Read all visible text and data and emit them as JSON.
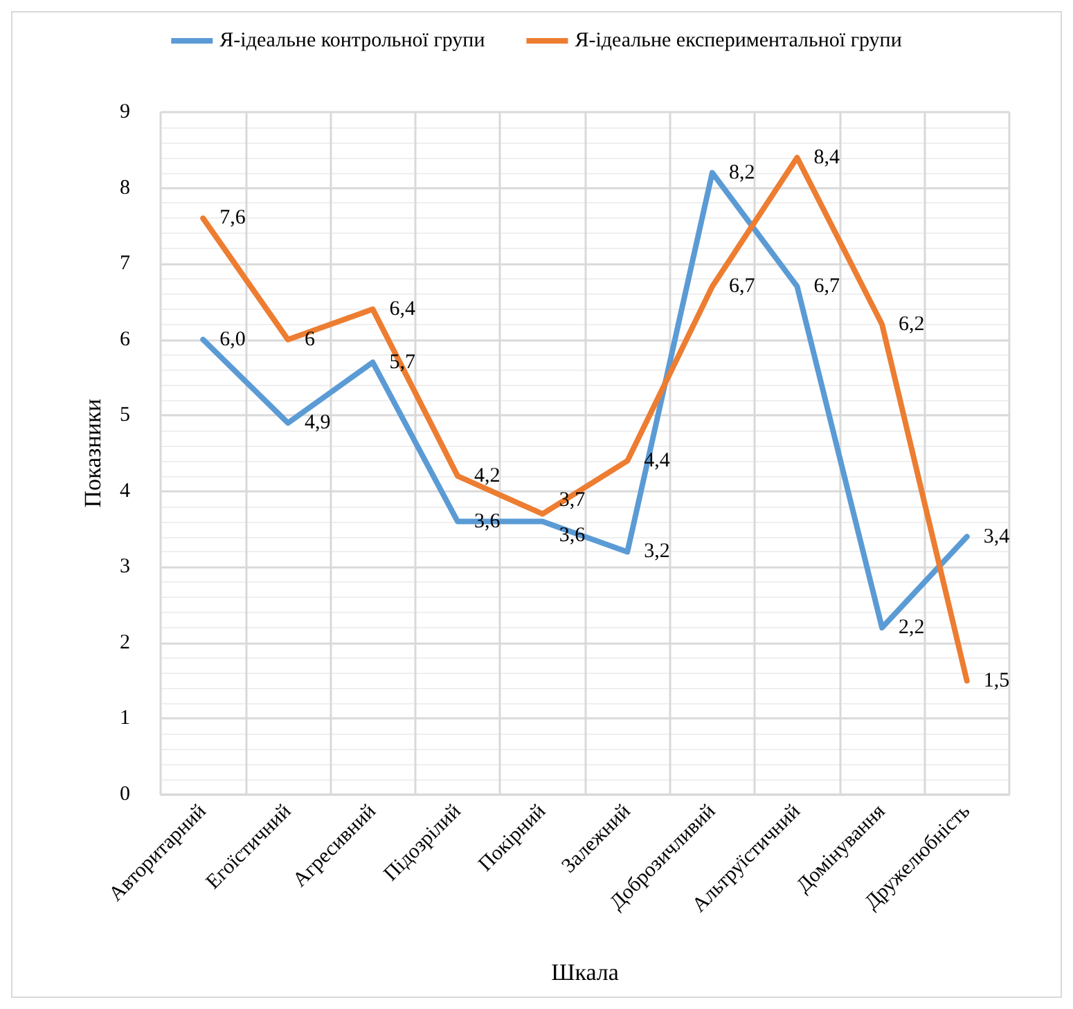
{
  "chart_data": {
    "type": "line",
    "xlabel": "Шкала",
    "ylabel": "Показники",
    "categories": [
      "Авторитарний",
      "Егоїстичний",
      "Агресивний",
      "Підозрілий",
      "Покірний",
      "Залежний",
      "Доброзичливий",
      "Альтруїстичний",
      "Домінування",
      "Дружелюбність"
    ],
    "series": [
      {
        "name": "Я-ідеальне контрольної групи",
        "color": "#5b9bd5",
        "values": [
          6.0,
          4.9,
          5.7,
          3.6,
          3.6,
          3.2,
          8.2,
          6.7,
          2.2,
          3.4
        ],
        "value_labels": [
          "6,0",
          "4,9",
          "5,7",
          "3,6",
          "3,6",
          "3,2",
          "8,2",
          "6,7",
          "2,2",
          "3,4"
        ]
      },
      {
        "name": "Я-ідеальне експериментальної групи",
        "color": "#ed7d31",
        "values": [
          7.6,
          6,
          6.4,
          4.2,
          3.7,
          4.4,
          6.7,
          8.4,
          6.2,
          1.5
        ],
        "value_labels": [
          "7,6",
          "6",
          "6,4",
          "4,2",
          "3,7",
          "4,4",
          "6,7",
          "8,4",
          "6,2",
          "1,5"
        ]
      }
    ],
    "ylim": [
      0,
      9
    ],
    "yticks": [
      0,
      1,
      2,
      3,
      4,
      5,
      6,
      7,
      8,
      9
    ],
    "grid": true,
    "legend": "top",
    "marker": "none",
    "line_style": "solid"
  }
}
